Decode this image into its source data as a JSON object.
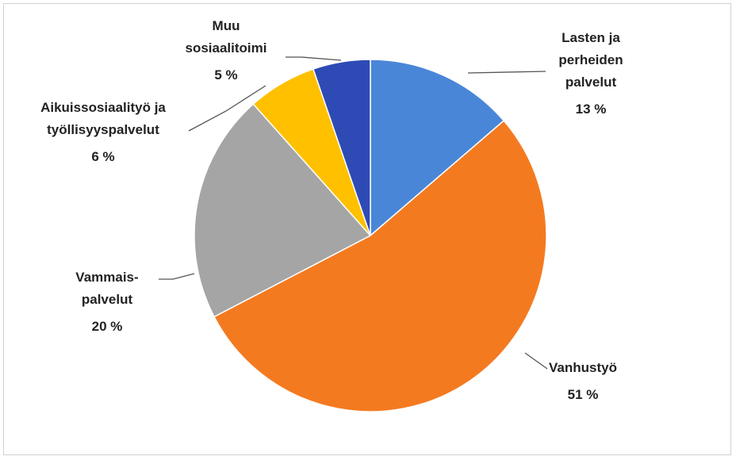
{
  "chart_data": {
    "type": "pie",
    "categories": [
      "Lasten ja perheiden palvelut",
      "Vanhustyö",
      "Vammais-palvelut",
      "Aikuissosiaalityö ja työllisyyspalvelut",
      "Muu sosiaalitoimi"
    ],
    "values": [
      13,
      51,
      20,
      6,
      5
    ],
    "value_labels": [
      "13 %",
      "51 %",
      "20 %",
      "6 %",
      "5 %"
    ],
    "colors": [
      "#4a86d8",
      "#f47a20",
      "#a5a5a5",
      "#ffc000",
      "#2e4bb5"
    ]
  }
}
